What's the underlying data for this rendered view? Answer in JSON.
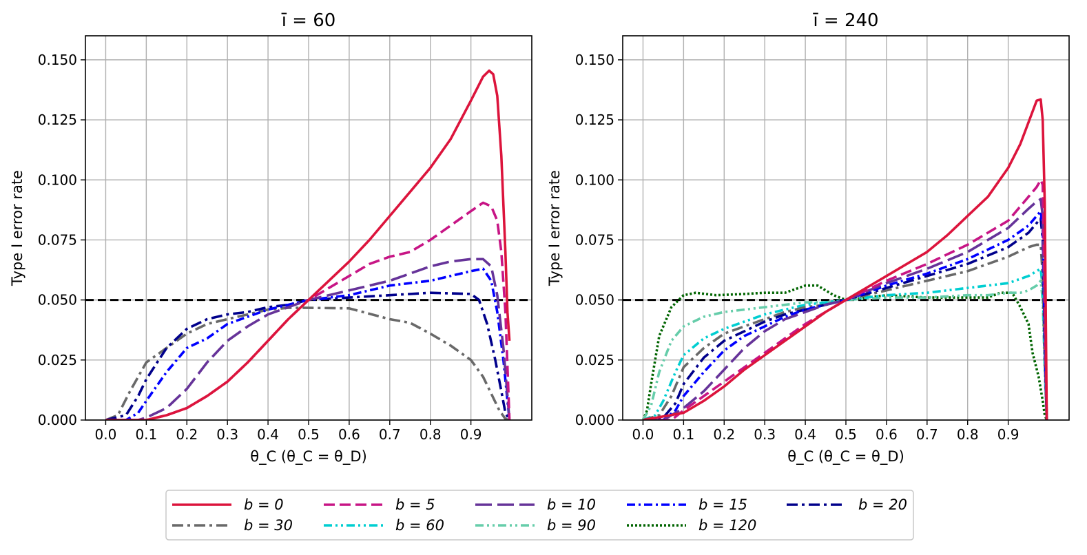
{
  "chart_data": [
    {
      "type": "line",
      "title": "ī = 60",
      "xlabel": "θ_C   (θ_C = θ_D)",
      "ylabel": "Type I error rate",
      "xlim": [
        -0.05,
        1.05
      ],
      "ylim": [
        0.0,
        0.16
      ],
      "xticks": [
        "0.0",
        "0.1",
        "0.2",
        "0.3",
        "0.4",
        "0.5",
        "0.6",
        "0.7",
        "0.8",
        "0.9"
      ],
      "yticks": [
        "0.000",
        "0.025",
        "0.050",
        "0.075",
        "0.100",
        "0.125",
        "0.150"
      ],
      "grid": true,
      "reference_line": 0.05,
      "series": [
        {
          "name": "b = 30",
          "x": [
            0.0,
            0.03,
            0.06,
            0.1,
            0.15,
            0.2,
            0.25,
            0.3,
            0.35,
            0.4,
            0.45,
            0.5,
            0.6,
            0.7,
            0.75,
            0.8,
            0.85,
            0.9,
            0.93,
            0.95,
            0.97,
            0.985,
            0.995
          ],
          "y": [
            0.0,
            0.002,
            0.012,
            0.024,
            0.03,
            0.036,
            0.04,
            0.042,
            0.044,
            0.046,
            0.0467,
            0.0467,
            0.0465,
            0.042,
            0.0405,
            0.036,
            0.031,
            0.025,
            0.018,
            0.011,
            0.004,
            0.0005,
            0.0
          ]
        },
        {
          "name": "b = 20",
          "x": [
            0.0,
            0.05,
            0.08,
            0.1,
            0.15,
            0.2,
            0.25,
            0.3,
            0.35,
            0.4,
            0.45,
            0.5,
            0.6,
            0.7,
            0.8,
            0.9,
            0.92,
            0.94,
            0.96,
            0.975,
            0.985,
            0.995
          ],
          "y": [
            0.0,
            0.002,
            0.01,
            0.017,
            0.03,
            0.038,
            0.042,
            0.044,
            0.045,
            0.047,
            0.048,
            0.05,
            0.051,
            0.052,
            0.053,
            0.0525,
            0.05,
            0.04,
            0.025,
            0.012,
            0.003,
            0.0
          ]
        },
        {
          "name": "b = 15",
          "x": [
            0.0,
            0.05,
            0.08,
            0.1,
            0.15,
            0.2,
            0.25,
            0.3,
            0.35,
            0.4,
            0.45,
            0.5,
            0.6,
            0.7,
            0.8,
            0.9,
            0.93,
            0.95,
            0.965,
            0.98,
            0.99,
            0.995
          ],
          "y": [
            0.0,
            0.0,
            0.003,
            0.008,
            0.02,
            0.03,
            0.034,
            0.04,
            0.043,
            0.046,
            0.048,
            0.05,
            0.052,
            0.056,
            0.058,
            0.062,
            0.063,
            0.058,
            0.045,
            0.025,
            0.008,
            0.0
          ]
        },
        {
          "name": "b = 10",
          "x": [
            0.0,
            0.08,
            0.1,
            0.15,
            0.2,
            0.25,
            0.3,
            0.35,
            0.4,
            0.45,
            0.5,
            0.6,
            0.7,
            0.75,
            0.8,
            0.85,
            0.9,
            0.93,
            0.95,
            0.965,
            0.98,
            0.99,
            0.995
          ],
          "y": [
            0.0,
            0.0,
            0.001,
            0.005,
            0.013,
            0.024,
            0.033,
            0.039,
            0.044,
            0.047,
            0.05,
            0.054,
            0.058,
            0.061,
            0.064,
            0.066,
            0.067,
            0.067,
            0.064,
            0.052,
            0.03,
            0.01,
            0.0
          ]
        },
        {
          "name": "b = 5",
          "x": [
            0.0,
            0.1,
            0.15,
            0.2,
            0.25,
            0.3,
            0.35,
            0.4,
            0.45,
            0.5,
            0.55,
            0.6,
            0.65,
            0.7,
            0.75,
            0.8,
            0.85,
            0.9,
            0.93,
            0.95,
            0.965,
            0.975,
            0.985,
            0.995
          ],
          "y": [
            0.0,
            0.0,
            0.002,
            0.005,
            0.01,
            0.016,
            0.024,
            0.033,
            0.042,
            0.05,
            0.055,
            0.06,
            0.065,
            0.068,
            0.07,
            0.075,
            0.081,
            0.087,
            0.0905,
            0.089,
            0.083,
            0.07,
            0.045,
            0.0
          ]
        },
        {
          "name": "b = 0",
          "x": [
            0.0,
            0.1,
            0.15,
            0.2,
            0.25,
            0.3,
            0.35,
            0.4,
            0.45,
            0.5,
            0.55,
            0.6,
            0.65,
            0.7,
            0.75,
            0.8,
            0.85,
            0.9,
            0.93,
            0.945,
            0.955,
            0.965,
            0.975,
            0.985,
            0.99,
            0.995
          ],
          "y": [
            0.0,
            0.0,
            0.002,
            0.005,
            0.01,
            0.016,
            0.024,
            0.033,
            0.042,
            0.05,
            0.058,
            0.066,
            0.075,
            0.085,
            0.095,
            0.105,
            0.117,
            0.133,
            0.143,
            0.1455,
            0.144,
            0.135,
            0.11,
            0.07,
            0.045,
            0.033
          ]
        }
      ]
    },
    {
      "type": "line",
      "title": "ī = 240",
      "xlabel": "θ_C   (θ_C = θ_D)",
      "ylabel": "Type I error rate",
      "xlim": [
        -0.05,
        1.05
      ],
      "ylim": [
        0.0,
        0.16
      ],
      "xticks": [
        "0.0",
        "0.1",
        "0.2",
        "0.3",
        "0.4",
        "0.5",
        "0.6",
        "0.7",
        "0.8",
        "0.9"
      ],
      "yticks": [
        "0.000",
        "0.025",
        "0.050",
        "0.075",
        "0.100",
        "0.125",
        "0.150"
      ],
      "grid": true,
      "reference_line": 0.05,
      "series": [
        {
          "name": "b = 120",
          "x": [
            0.0,
            0.01,
            0.02,
            0.04,
            0.07,
            0.1,
            0.13,
            0.18,
            0.25,
            0.3,
            0.35,
            0.4,
            0.43,
            0.47,
            0.5,
            0.6,
            0.7,
            0.8,
            0.85,
            0.88,
            0.91,
            0.93,
            0.95,
            0.96,
            0.975,
            0.985,
            0.99,
            0.995
          ],
          "y": [
            0.0,
            0.004,
            0.015,
            0.035,
            0.047,
            0.052,
            0.053,
            0.052,
            0.0525,
            0.053,
            0.053,
            0.056,
            0.056,
            0.052,
            0.05,
            0.052,
            0.051,
            0.051,
            0.051,
            0.053,
            0.053,
            0.047,
            0.04,
            0.028,
            0.018,
            0.008,
            0.002,
            0.0
          ]
        },
        {
          "name": "b = 90",
          "x": [
            0.0,
            0.02,
            0.04,
            0.07,
            0.1,
            0.15,
            0.2,
            0.25,
            0.3,
            0.35,
            0.4,
            0.45,
            0.5,
            0.6,
            0.7,
            0.8,
            0.85,
            0.9,
            0.93,
            0.95,
            0.97,
            0.98,
            0.985,
            0.99,
            0.995
          ],
          "y": [
            0.0,
            0.006,
            0.02,
            0.033,
            0.039,
            0.043,
            0.045,
            0.046,
            0.047,
            0.048,
            0.049,
            0.049,
            0.05,
            0.051,
            0.051,
            0.052,
            0.052,
            0.053,
            0.053,
            0.054,
            0.056,
            0.058,
            0.05,
            0.02,
            0.0
          ]
        },
        {
          "name": "b = 60",
          "x": [
            0.0,
            0.03,
            0.05,
            0.08,
            0.1,
            0.15,
            0.2,
            0.25,
            0.3,
            0.35,
            0.4,
            0.45,
            0.5,
            0.6,
            0.7,
            0.8,
            0.9,
            0.95,
            0.97,
            0.98,
            0.985,
            0.99,
            0.995
          ],
          "y": [
            0.0,
            0.002,
            0.008,
            0.02,
            0.027,
            0.034,
            0.038,
            0.041,
            0.044,
            0.046,
            0.048,
            0.049,
            0.05,
            0.052,
            0.053,
            0.055,
            0.057,
            0.06,
            0.062,
            0.063,
            0.055,
            0.025,
            0.0
          ]
        },
        {
          "name": "b = 30",
          "x": [
            0.0,
            0.04,
            0.07,
            0.1,
            0.15,
            0.2,
            0.25,
            0.3,
            0.35,
            0.4,
            0.45,
            0.5,
            0.6,
            0.7,
            0.8,
            0.9,
            0.95,
            0.97,
            0.98,
            0.985,
            0.99,
            0.995
          ],
          "y": [
            0.0,
            0.002,
            0.01,
            0.022,
            0.03,
            0.036,
            0.039,
            0.042,
            0.045,
            0.047,
            0.048,
            0.05,
            0.054,
            0.058,
            0.062,
            0.068,
            0.072,
            0.073,
            0.073,
            0.06,
            0.025,
            0.0
          ]
        },
        {
          "name": "b = 20",
          "x": [
            0.0,
            0.05,
            0.08,
            0.1,
            0.15,
            0.2,
            0.25,
            0.3,
            0.35,
            0.4,
            0.45,
            0.5,
            0.6,
            0.7,
            0.8,
            0.9,
            0.95,
            0.97,
            0.98,
            0.985,
            0.99,
            0.995
          ],
          "y": [
            0.0,
            0.001,
            0.007,
            0.015,
            0.026,
            0.033,
            0.037,
            0.041,
            0.044,
            0.046,
            0.048,
            0.05,
            0.055,
            0.06,
            0.065,
            0.072,
            0.078,
            0.082,
            0.084,
            0.075,
            0.03,
            0.0
          ]
        },
        {
          "name": "b = 15",
          "x": [
            0.0,
            0.05,
            0.08,
            0.1,
            0.15,
            0.2,
            0.25,
            0.3,
            0.35,
            0.4,
            0.45,
            0.5,
            0.6,
            0.7,
            0.8,
            0.9,
            0.95,
            0.97,
            0.98,
            0.985,
            0.99,
            0.995
          ],
          "y": [
            0.0,
            0.0,
            0.004,
            0.01,
            0.02,
            0.029,
            0.035,
            0.039,
            0.043,
            0.046,
            0.048,
            0.05,
            0.056,
            0.061,
            0.067,
            0.075,
            0.081,
            0.085,
            0.087,
            0.08,
            0.035,
            0.0
          ]
        },
        {
          "name": "b = 10",
          "x": [
            0.0,
            0.05,
            0.1,
            0.15,
            0.2,
            0.25,
            0.3,
            0.35,
            0.4,
            0.45,
            0.5,
            0.6,
            0.7,
            0.8,
            0.9,
            0.95,
            0.97,
            0.98,
            0.985,
            0.99,
            0.995
          ],
          "y": [
            0.0,
            0.0,
            0.005,
            0.012,
            0.021,
            0.03,
            0.037,
            0.042,
            0.045,
            0.048,
            0.05,
            0.057,
            0.063,
            0.07,
            0.08,
            0.088,
            0.091,
            0.092,
            0.085,
            0.04,
            0.0
          ]
        },
        {
          "name": "b = 5",
          "x": [
            0.0,
            0.07,
            0.1,
            0.15,
            0.2,
            0.25,
            0.3,
            0.35,
            0.4,
            0.45,
            0.5,
            0.6,
            0.7,
            0.8,
            0.9,
            0.95,
            0.97,
            0.98,
            0.985,
            0.99,
            0.995
          ],
          "y": [
            0.0,
            0.0,
            0.004,
            0.01,
            0.016,
            0.022,
            0.028,
            0.034,
            0.04,
            0.045,
            0.05,
            0.058,
            0.065,
            0.073,
            0.083,
            0.093,
            0.097,
            0.1,
            0.098,
            0.05,
            0.0
          ]
        },
        {
          "name": "b = 0",
          "x": [
            0.0,
            0.1,
            0.15,
            0.2,
            0.25,
            0.3,
            0.35,
            0.4,
            0.45,
            0.5,
            0.6,
            0.7,
            0.75,
            0.8,
            0.85,
            0.9,
            0.93,
            0.95,
            0.97,
            0.98,
            0.985,
            0.99,
            0.995
          ],
          "y": [
            0.0,
            0.003,
            0.008,
            0.014,
            0.021,
            0.027,
            0.033,
            0.039,
            0.045,
            0.05,
            0.06,
            0.07,
            0.077,
            0.085,
            0.093,
            0.105,
            0.115,
            0.124,
            0.133,
            0.1335,
            0.125,
            0.09,
            0.0
          ]
        }
      ]
    }
  ],
  "legend": {
    "entries": [
      {
        "label": "b = 0",
        "color": "#dc143c",
        "dash": "solid"
      },
      {
        "label": "b = 5",
        "color": "#c71585",
        "dash": "dashed"
      },
      {
        "label": "b = 10",
        "color": "#663399",
        "dash": "longdash"
      },
      {
        "label": "b = 15",
        "color": "#0000ff",
        "dash": "dashdot"
      },
      {
        "label": "b = 20",
        "color": "#00008b",
        "dash": "dashdot-long"
      },
      {
        "label": "b = 30",
        "color": "#696969",
        "dash": "dashdot-long"
      },
      {
        "label": "b = 60",
        "color": "#00ced1",
        "dash": "dashdotdot"
      },
      {
        "label": "b = 90",
        "color": "#66cdaa",
        "dash": "dashdotdot"
      },
      {
        "label": "b = 120",
        "color": "#006400",
        "dash": "dotted"
      }
    ]
  },
  "reference_line_color": "#000000"
}
